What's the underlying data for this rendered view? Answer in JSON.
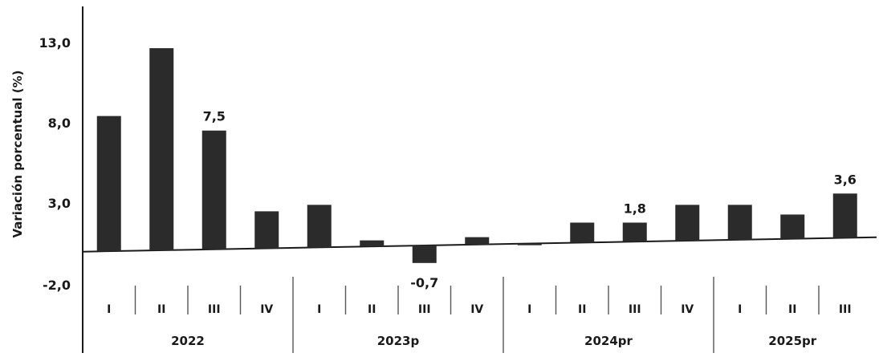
{
  "chart_data": {
    "type": "bar",
    "ylabel": "Variación porcentual (%)",
    "ylim": [
      -2.0,
      13.0
    ],
    "yticks": [
      "13,0",
      "8,0",
      "3,0",
      "-2,0"
    ],
    "groups": [
      {
        "label": "2022",
        "quarters": [
          "I",
          "II",
          "III",
          "IV"
        ],
        "values": [
          8.4,
          12.6,
          7.5,
          2.5
        ]
      },
      {
        "label": "2023p",
        "quarters": [
          "I",
          "II",
          "III",
          "IV"
        ],
        "values": [
          2.9,
          0.7,
          -0.7,
          0.9
        ]
      },
      {
        "label": "2024pr",
        "quarters": [
          "I",
          "II",
          "III",
          "IV"
        ],
        "values": [
          0.4,
          1.8,
          1.8,
          2.9
        ]
      },
      {
        "label": "2025pr",
        "quarters": [
          "I",
          "II",
          "III"
        ],
        "values": [
          2.9,
          2.3,
          3.6
        ]
      }
    ],
    "data_labels": [
      {
        "group": 0,
        "index": 2,
        "text": "7,5"
      },
      {
        "group": 1,
        "index": 2,
        "text": "-0,7"
      },
      {
        "group": 2,
        "index": 2,
        "text": "1,8"
      },
      {
        "group": 3,
        "index": 2,
        "text": "3,6"
      }
    ]
  }
}
